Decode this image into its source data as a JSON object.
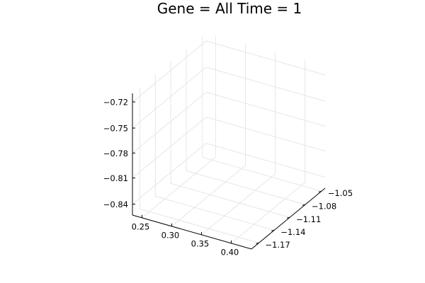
{
  "chart_data": {
    "type": "scatter",
    "projection": "3d",
    "title": "Gene = All Time = 1",
    "xlabel": "",
    "ylabel": "",
    "zlabel": "",
    "grid": true,
    "legend": "none",
    "x_ticks": [
      "0.25",
      "0.30",
      "0.35",
      "0.40"
    ],
    "y_ticks": [
      "−1.17",
      "−1.14",
      "−1.11",
      "−1.08",
      "−1.05"
    ],
    "z_ticks": [
      "−0.84",
      "−0.81",
      "−0.78",
      "−0.75",
      "−0.72"
    ],
    "series": []
  }
}
